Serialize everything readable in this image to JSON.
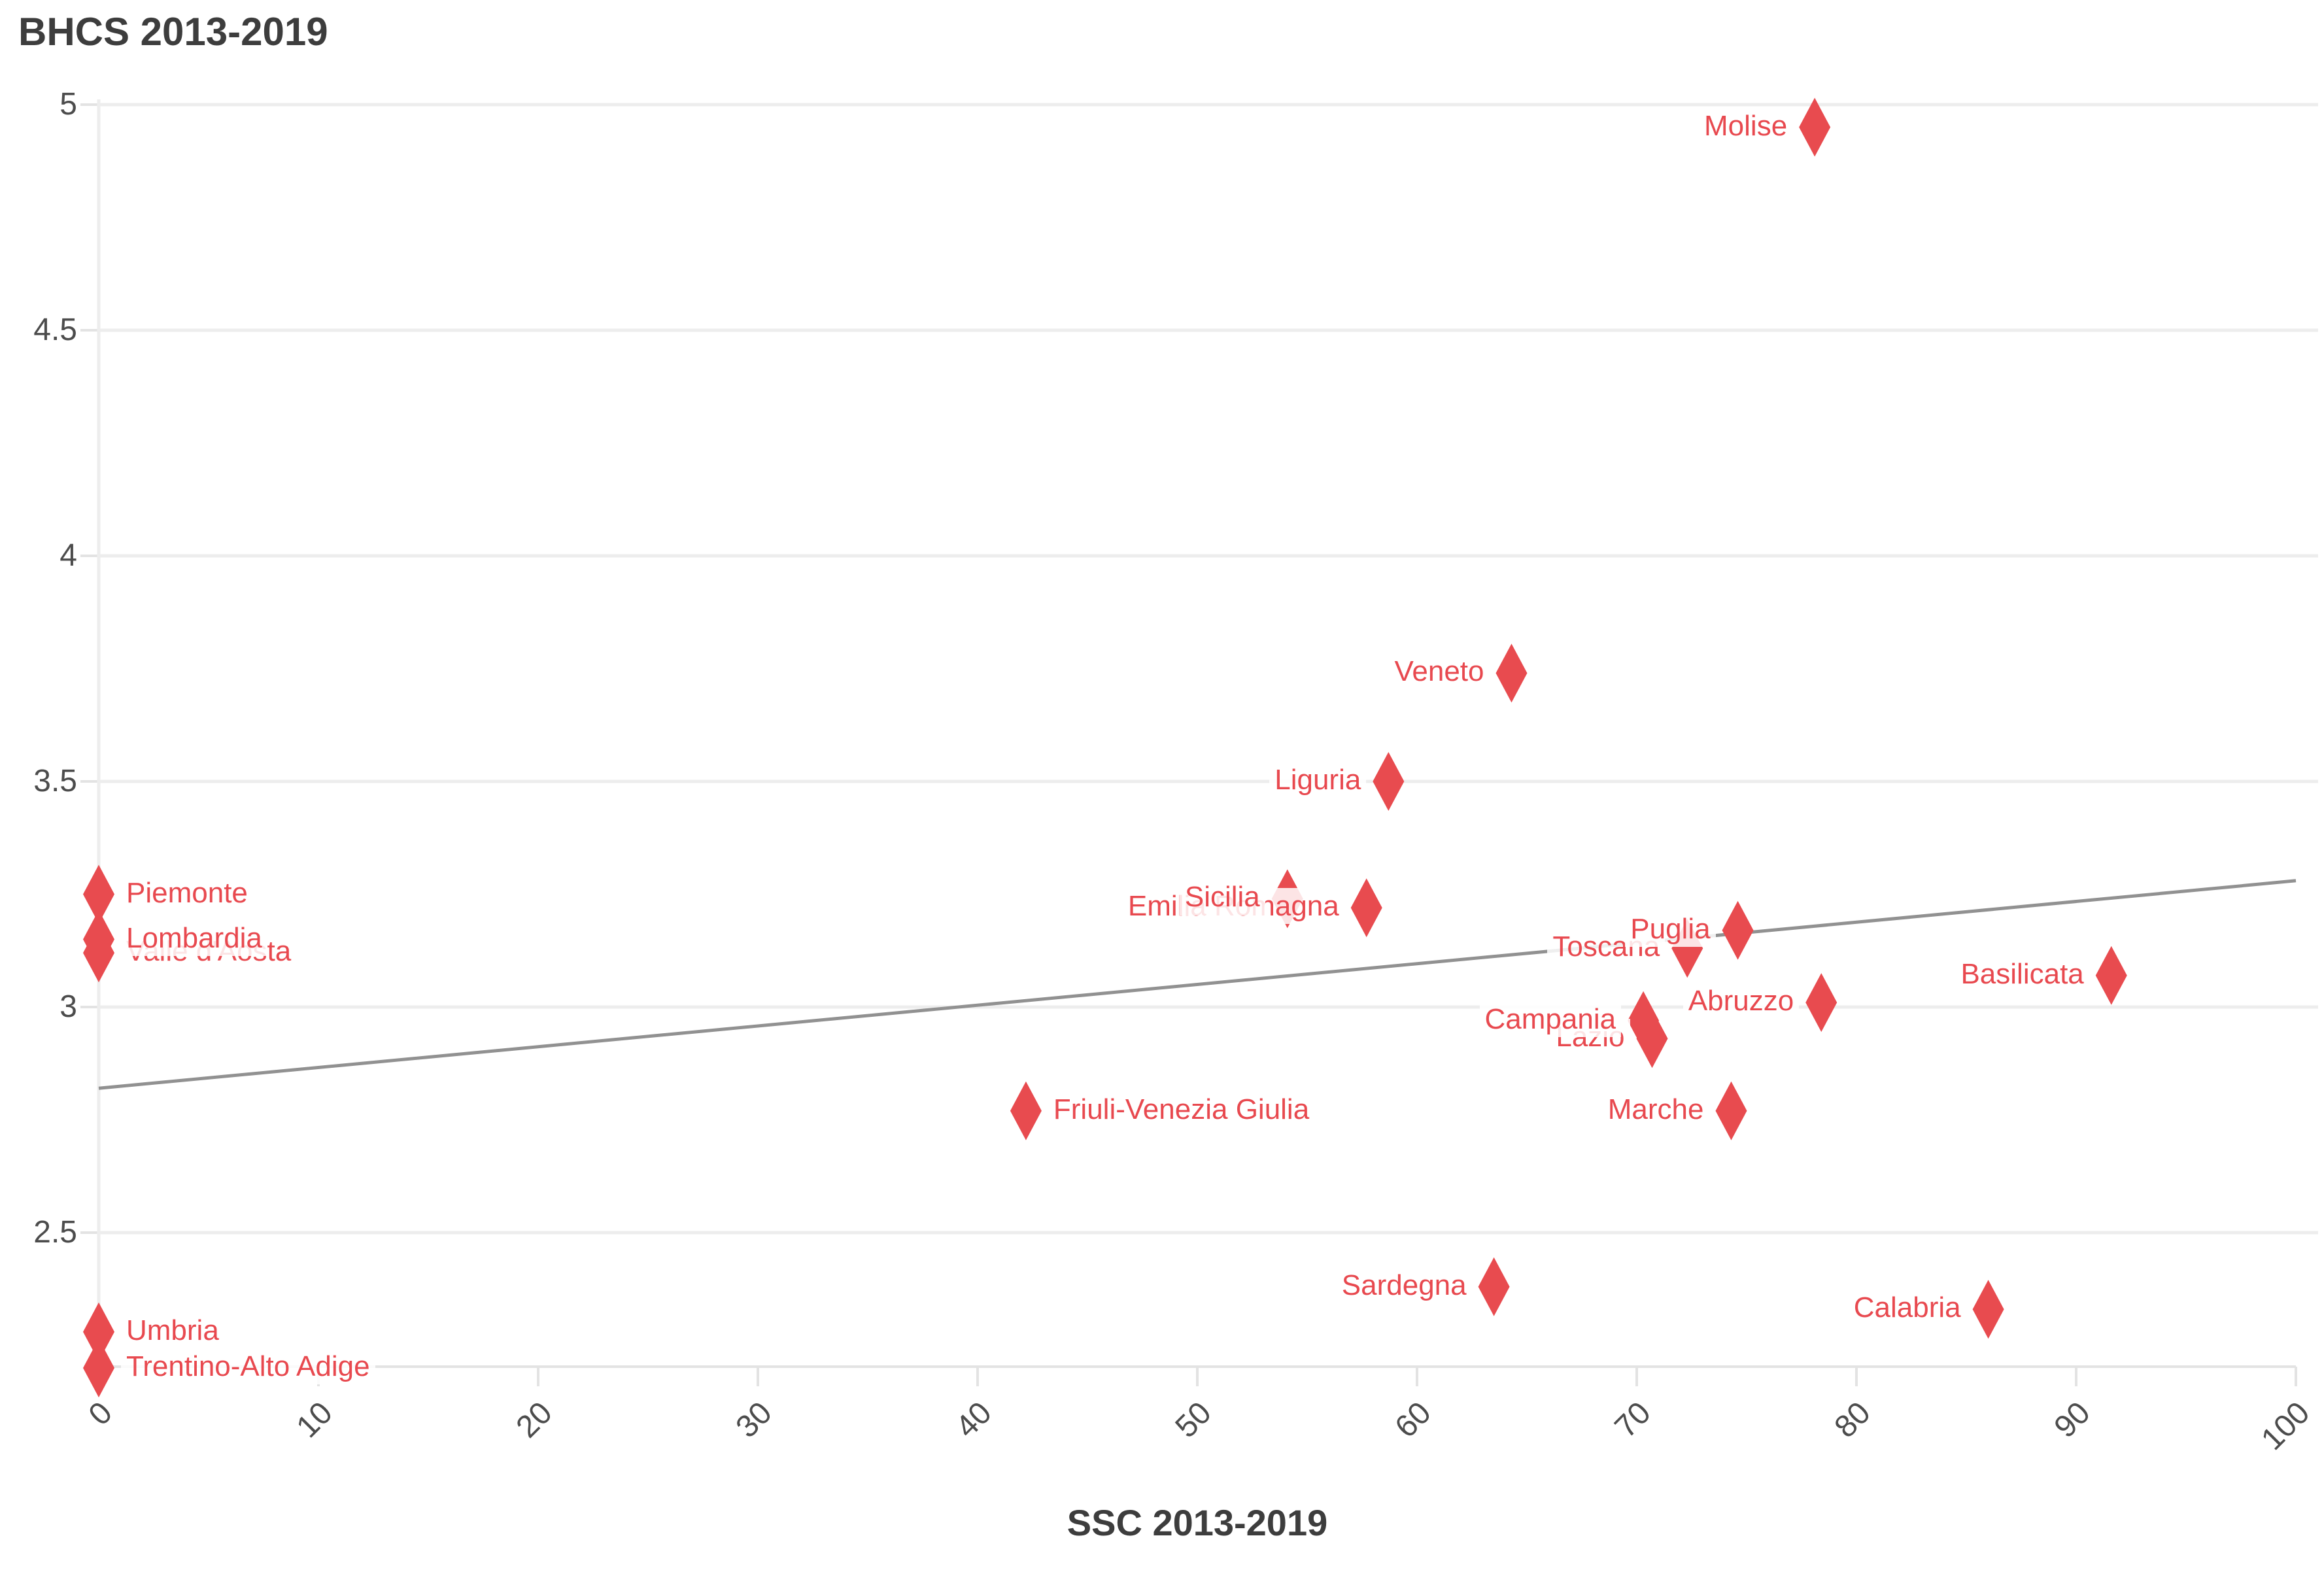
{
  "title": "BHCS 2013-2019",
  "x_axis_title": "SSC 2013-2019",
  "colors": {
    "marker": "#e84b4f",
    "label_text": "#e8494f",
    "trend_line": "#919191",
    "gridline": "#ededed",
    "axis_line": "#e3e3e3",
    "tick_text": "#4c4c4c",
    "title_text": "#3d3d3d"
  },
  "chart_data": {
    "type": "scatter",
    "title": "BHCS 2013-2019",
    "xlabel": "SSC 2013-2019",
    "ylabel": "BHCS 2013-2019",
    "marker_shape": "diamond",
    "grid": "horizontal",
    "xlim": [
      0,
      100
    ],
    "ylim": [
      2.2,
      5.05
    ],
    "x_ticks": [
      "0",
      "10",
      "20",
      "30",
      "40",
      "50",
      "60",
      "70",
      "80",
      "90",
      "100"
    ],
    "x_tick_values": [
      0,
      10,
      20,
      30,
      40,
      50,
      60,
      70,
      80,
      90,
      100
    ],
    "y_ticks": [
      "2.5",
      "3",
      "3.5",
      "4",
      "4.5",
      "5"
    ],
    "y_tick_values": [
      2.5,
      3,
      3.5,
      4,
      4.5,
      5
    ],
    "points": [
      {
        "name": "Valle d'Aosta",
        "x": 0,
        "y": 3.12,
        "label_side": "right"
      },
      {
        "name": "Lombardia",
        "x": 0,
        "y": 3.15,
        "label_side": "right"
      },
      {
        "name": "Piemonte",
        "x": 0,
        "y": 3.25,
        "label_side": "right"
      },
      {
        "name": "Trentino-Alto Adige",
        "x": 0,
        "y": 2.2,
        "label_side": "right"
      },
      {
        "name": "Umbria",
        "x": 0,
        "y": 2.28,
        "label_side": "right"
      },
      {
        "name": "Friuli-Venezia Giulia",
        "x": 42.2,
        "y": 2.77,
        "label_side": "right"
      },
      {
        "name": "Emilia Romagna",
        "x": 57.7,
        "y": 3.22,
        "label_side": "left"
      },
      {
        "name": "Sicilia",
        "x": 54.1,
        "y": 3.24,
        "label_side": "left"
      },
      {
        "name": "Liguria",
        "x": 58.7,
        "y": 3.5,
        "label_side": "left"
      },
      {
        "name": "Veneto",
        "x": 64.3,
        "y": 3.74,
        "label_side": "left"
      },
      {
        "name": "Sardegna",
        "x": 63.5,
        "y": 2.38,
        "label_side": "left"
      },
      {
        "name": "Lazio",
        "x": 70.7,
        "y": 2.93,
        "label_side": "left"
      },
      {
        "name": "Campania",
        "x": 70.3,
        "y": 2.97,
        "label_side": "left"
      },
      {
        "name": "Toscana",
        "x": 72.3,
        "y": 3.13,
        "label_side": "left"
      },
      {
        "name": "Puglia",
        "x": 74.6,
        "y": 3.17,
        "label_side": "left"
      },
      {
        "name": "Marche",
        "x": 74.3,
        "y": 2.77,
        "label_side": "left"
      },
      {
        "name": "Abruzzo",
        "x": 78.4,
        "y": 3.01,
        "label_side": "left"
      },
      {
        "name": "Molise",
        "x": 78.1,
        "y": 4.95,
        "label_side": "left"
      },
      {
        "name": "Calabria",
        "x": 86.0,
        "y": 2.33,
        "label_side": "left"
      },
      {
        "name": "Basilicata",
        "x": 91.6,
        "y": 3.07,
        "label_side": "left"
      }
    ],
    "trend_line": {
      "x1": 0,
      "y1": 2.82,
      "x2": 100,
      "y2": 3.28
    },
    "legend": "none"
  }
}
